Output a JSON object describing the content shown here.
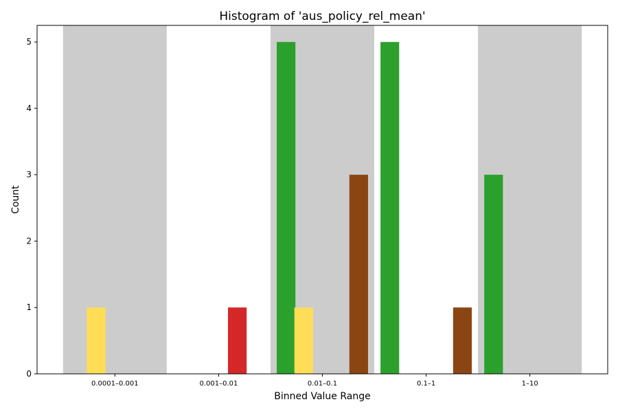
{
  "chart_data": {
    "type": "bar",
    "title": "Histogram of 'aus_policy_rel_mean'",
    "xlabel": "Binned Value Range",
    "ylabel": "Count",
    "categories": [
      "0.0001–0.001",
      "0.001–0.01",
      "0.01–0.1",
      "0.1–1",
      "1–10"
    ],
    "yticks": [
      0,
      1,
      2,
      3,
      4,
      5
    ],
    "ylim": [
      0,
      5.25
    ],
    "grid": false,
    "shaded_bins": [
      0,
      2,
      4
    ],
    "shade_color": "#cccccc",
    "series": [
      {
        "color": "#2ca02c",
        "offset": -0.35,
        "values": [
          0,
          0,
          5,
          5,
          3
        ]
      },
      {
        "color": "#ffdd57",
        "offset": -0.18,
        "values": [
          1,
          0,
          1,
          0,
          0
        ]
      },
      {
        "color": "#d62728",
        "offset": 0.18,
        "values": [
          0,
          1,
          0,
          0,
          0
        ]
      },
      {
        "color": "#8b4513",
        "offset": 0.35,
        "values": [
          0,
          0,
          3,
          1,
          0
        ]
      }
    ]
  }
}
